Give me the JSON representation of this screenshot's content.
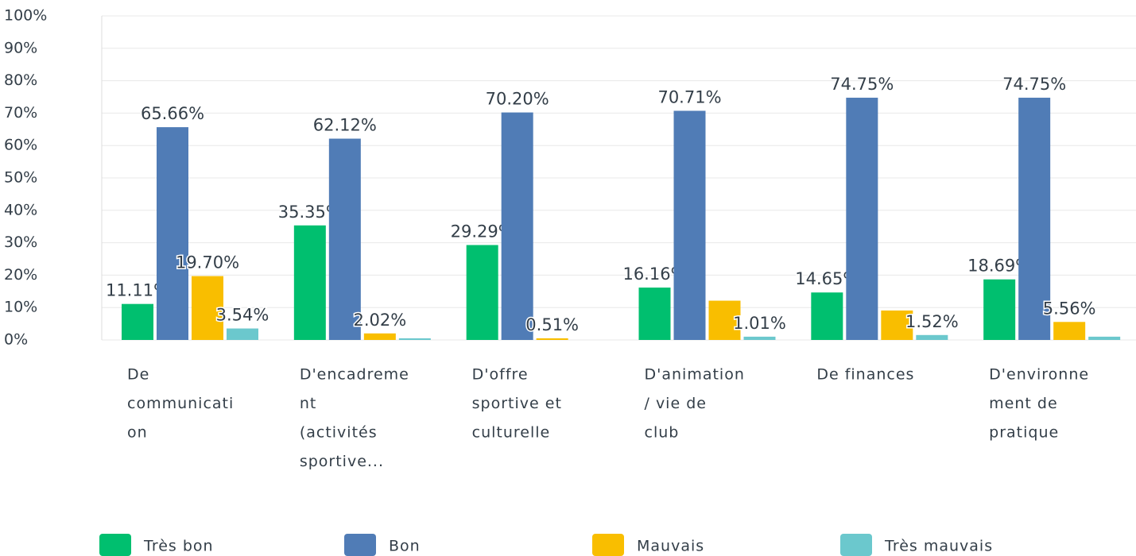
{
  "chart_data": {
    "type": "bar",
    "categories": [
      [
        "De",
        "communicati",
        "on"
      ],
      [
        "D'encadreme",
        "nt",
        "(activités",
        "sportive..."
      ],
      [
        "D'offre",
        "sportive et",
        "culturelle"
      ],
      [
        "D'animation",
        "/ vie de",
        "club"
      ],
      [
        "De finances"
      ],
      [
        "D'environne",
        "ment de",
        "pratique"
      ]
    ],
    "series": [
      {
        "name": "Très bon",
        "color": "#00bf6f",
        "values": [
          11.11,
          35.35,
          29.29,
          16.16,
          14.65,
          18.69
        ],
        "value_labels": [
          "11.11%",
          "35.35%",
          "29.29%",
          "16.16%",
          "14.65%",
          "18.69%"
        ]
      },
      {
        "name": "Bon",
        "color": "#507cb6",
        "values": [
          65.66,
          62.12,
          70.2,
          70.71,
          74.75,
          74.75
        ],
        "value_labels": [
          "65.66%",
          "62.12%",
          "70.20%",
          "70.71%",
          "74.75%",
          "74.75%"
        ]
      },
      {
        "name": "Mauvais",
        "color": "#f9be00",
        "values": [
          19.7,
          2.02,
          0.51,
          12.12,
          9.09,
          5.56
        ],
        "value_labels": [
          "19.70%",
          "2.02%",
          "0.51%",
          null,
          null,
          "5.56%"
        ]
      },
      {
        "name": "Très mauvais",
        "color": "#6bc8cd",
        "values": [
          3.54,
          0.51,
          0,
          1.01,
          1.52,
          1.01
        ],
        "value_labels": [
          "3.54%",
          null,
          null,
          "1.01%",
          "1.52%",
          null
        ]
      }
    ],
    "ylim": [
      0,
      100
    ],
    "yticks": [
      {
        "value": 0,
        "label": "0%"
      },
      {
        "value": 10,
        "label": "10%"
      },
      {
        "value": 20,
        "label": "20%"
      },
      {
        "value": 30,
        "label": "30%"
      },
      {
        "value": 40,
        "label": "40%"
      },
      {
        "value": 50,
        "label": "50%"
      },
      {
        "value": 60,
        "label": "60%"
      },
      {
        "value": 70,
        "label": "70%"
      },
      {
        "value": 80,
        "label": "80%"
      },
      {
        "value": 90,
        "label": "90%"
      },
      {
        "value": 100,
        "label": "100%"
      }
    ],
    "grid": true
  }
}
